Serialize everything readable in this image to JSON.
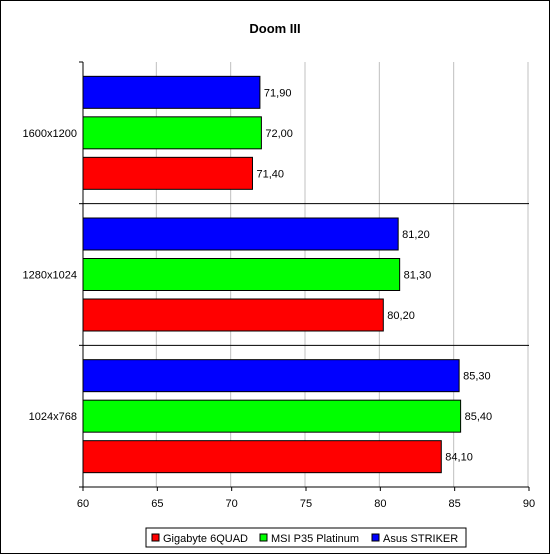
{
  "chart_data": {
    "type": "bar",
    "orientation": "horizontal",
    "title": "Doom III",
    "categories": [
      "1600x1200",
      "1280x1024",
      "1024x768"
    ],
    "series": [
      {
        "name": "Asus STRIKER",
        "color": "#0000ff",
        "values": [
          71.9,
          81.2,
          85.3
        ],
        "labels": [
          "71,90",
          "81,20",
          "85,30"
        ]
      },
      {
        "name": "MSI P35 Platinum",
        "color": "#00ff00",
        "values": [
          72.0,
          81.3,
          85.4
        ],
        "labels": [
          "72,00",
          "81,30",
          "85,40"
        ]
      },
      {
        "name": "Gigabyte 6QUAD",
        "color": "#ff0000",
        "values": [
          71.4,
          80.2,
          84.1
        ],
        "labels": [
          "71,40",
          "80,20",
          "84,10"
        ]
      }
    ],
    "legend_order": [
      "Gigabyte 6QUAD",
      "MSI P35 Platinum",
      "Asus STRIKER"
    ],
    "xlim": [
      60,
      90
    ],
    "xticks": [
      60,
      65,
      70,
      75,
      80,
      85,
      90
    ],
    "xlabel": "",
    "ylabel": "",
    "grid": true,
    "legend_position": "bottom"
  }
}
